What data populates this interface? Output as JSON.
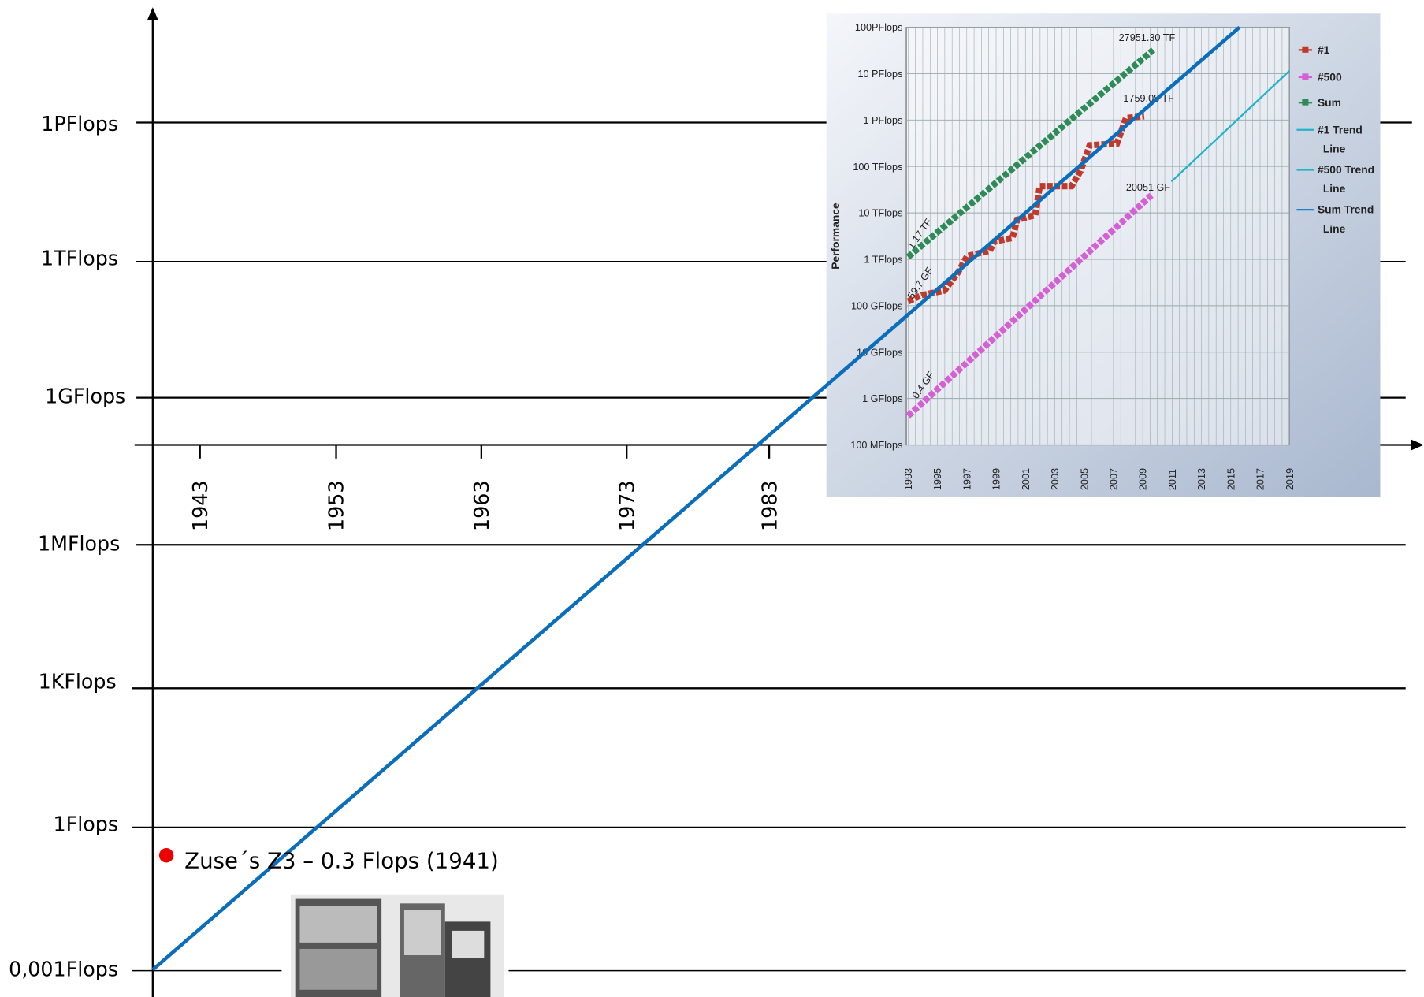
{
  "y_levels": [
    "1PFlops",
    "1TFlops",
    "1GFlops",
    "1MFlops",
    "1KFlops",
    "1Flops",
    "0,001Flops"
  ],
  "x_years": [
    "1943",
    "1953",
    "1963",
    "1973",
    "1983"
  ],
  "annotation": "Zuse´s Z3 – 0.3 Flops (1941)",
  "inset": {
    "y_axis_label": "Performance",
    "yticks": [
      "100PFlops",
      "10 PFlops",
      "1 PFlops",
      "100 TFlops",
      "10 TFlops",
      "1 TFlops",
      "100 GFlops",
      "10 GFlops",
      "1 GFlops",
      "100 MFlops"
    ],
    "xticks": [
      "1993",
      "1995",
      "1997",
      "1999",
      "2001",
      "2003",
      "2005",
      "2007",
      "2009",
      "2011",
      "2013",
      "2015",
      "2017",
      "2019"
    ],
    "legend": [
      "#1",
      "#500",
      "Sum",
      "#1 Trend Line",
      "#500 Trend Line",
      "Sum Trend Line"
    ],
    "labels": [
      "27951.30 TF",
      "1759.08 TF",
      "20051 GF",
      "1.17 TF",
      "59.7 GF",
      "0.4 GF"
    ]
  }
}
